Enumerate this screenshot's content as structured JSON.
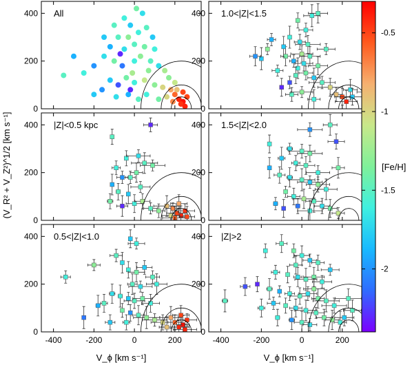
{
  "chart_data": {
    "type": "scatter",
    "shared_axes": {
      "xlabel": "V_ϕ [km s⁻¹]",
      "ylabel": "(V_R² + V_Z²)^1/2 [km s⁻¹]",
      "xlim": [
        -460,
        330
      ],
      "ylim": [
        0,
        450
      ],
      "x_ticks": [
        -400,
        -200,
        0,
        200
      ],
      "y_ticks": [
        0,
        200,
        400
      ],
      "x_tick_labels": [
        "-400",
        "-200",
        "0",
        "200"
      ],
      "y_tick_labels": [
        "0",
        "200",
        "400"
      ],
      "reference_circles": {
        "center_x": 232,
        "center_y": 0,
        "radii": [
          50,
          100,
          200
        ]
      }
    },
    "colorbar": {
      "label": "[Fe/H]",
      "range": [
        -2.4,
        -0.3
      ],
      "ticks": [
        -0.5,
        -1,
        -1.5,
        -2
      ],
      "tick_labels": [
        "-0.5",
        "-1",
        "-1.5",
        "-2"
      ],
      "colors": [
        "#7b00ff",
        "#2f6cff",
        "#19b9ff",
        "#3ff0e0",
        "#7ff09a",
        "#c8e88a",
        "#f5b070",
        "#ff5a1e",
        "#ff0000"
      ]
    },
    "panels": [
      {
        "label": "All",
        "has_error_bars": false,
        "ncolumn": 0,
        "nrow": 0,
        "points": [
          [
            -50,
            380,
            -1.6
          ],
          [
            -20,
            350,
            -1.8
          ],
          [
            10,
            420,
            -1.4
          ],
          [
            40,
            400,
            -1.7
          ],
          [
            -80,
            300,
            -1.5
          ],
          [
            -120,
            260,
            -1.9
          ],
          [
            -30,
            300,
            -1.3
          ],
          [
            20,
            320,
            -1.6
          ],
          [
            60,
            340,
            -1.5
          ],
          [
            90,
            300,
            -1.8
          ],
          [
            -150,
            220,
            -1.7
          ],
          [
            -200,
            180,
            -2.0
          ],
          [
            -250,
            150,
            -1.6
          ],
          [
            -300,
            220,
            -1.9
          ],
          [
            -350,
            140,
            -1.5
          ],
          [
            -100,
            200,
            -1.4
          ],
          [
            -60,
            180,
            -2.1
          ],
          [
            0,
            200,
            -1.6
          ],
          [
            30,
            220,
            -1.3
          ],
          [
            80,
            200,
            -1.5
          ],
          [
            120,
            180,
            -1.7
          ],
          [
            150,
            160,
            -1.2
          ],
          [
            -120,
            120,
            -1.8
          ],
          [
            -80,
            100,
            -2.2
          ],
          [
            -40,
            130,
            -1.4
          ],
          [
            0,
            110,
            -1.6
          ],
          [
            50,
            120,
            -1.1
          ],
          [
            100,
            100,
            -1.3
          ],
          [
            140,
            90,
            -1.0
          ],
          [
            180,
            80,
            -0.8
          ],
          [
            200,
            60,
            -0.6
          ],
          [
            220,
            40,
            -0.4
          ],
          [
            240,
            30,
            -0.35
          ],
          [
            260,
            50,
            -0.5
          ],
          [
            210,
            80,
            -0.9
          ],
          [
            230,
            20,
            -0.45
          ],
          [
            250,
            10,
            -0.4
          ],
          [
            190,
            30,
            -0.7
          ],
          [
            160,
            50,
            -1.0
          ],
          [
            120,
            40,
            -1.4
          ],
          [
            60,
            60,
            -1.6
          ],
          [
            20,
            40,
            -1.5
          ],
          [
            -30,
            60,
            -1.9
          ],
          [
            -90,
            50,
            -1.7
          ],
          [
            -160,
            80,
            -2.0
          ],
          [
            -200,
            60,
            -1.8
          ],
          [
            -50,
            250,
            -1.7
          ],
          [
            0,
            270,
            -1.5
          ],
          [
            50,
            260,
            -1.4
          ],
          [
            -10,
            150,
            -1.2
          ],
          [
            -70,
            230,
            -2.3
          ],
          [
            100,
            250,
            -1.6
          ],
          [
            -150,
            300,
            -1.8
          ],
          [
            -100,
            350,
            -1.5
          ],
          [
            70,
            160,
            -1.3
          ],
          [
            -20,
            80,
            -2.3
          ],
          [
            240,
            70,
            -0.5
          ],
          [
            200,
            110,
            -1.1
          ],
          [
            170,
            130,
            -1.3
          ]
        ]
      },
      {
        "label": "1.0<|Z|<1.5",
        "has_error_bars": true,
        "ncolumn": 1,
        "nrow": 0,
        "points": [
          [
            50,
            390,
            -1.6
          ],
          [
            80,
            400,
            -1.5
          ],
          [
            -20,
            370,
            -1.4
          ],
          [
            -150,
            290,
            -1.9
          ],
          [
            -200,
            210,
            -1.8
          ],
          [
            -230,
            220,
            -2.0
          ],
          [
            -170,
            250,
            -1.3
          ],
          [
            -60,
            300,
            -1.6
          ],
          [
            -10,
            280,
            -1.7
          ],
          [
            30,
            270,
            -1.5
          ],
          [
            -80,
            220,
            -1.4
          ],
          [
            -40,
            200,
            -1.9
          ],
          [
            0,
            230,
            -1.2
          ],
          [
            40,
            220,
            -1.5
          ],
          [
            -20,
            170,
            -1.6
          ],
          [
            20,
            150,
            -1.4
          ],
          [
            60,
            130,
            -1.8
          ],
          [
            -60,
            110,
            -2.2
          ],
          [
            -100,
            90,
            -2.3
          ],
          [
            100,
            110,
            -1.5
          ],
          [
            140,
            90,
            -1.0
          ],
          [
            170,
            60,
            -0.9
          ],
          [
            200,
            50,
            -0.5
          ],
          [
            220,
            30,
            -0.4
          ],
          [
            240,
            80,
            -1.7
          ],
          [
            250,
            50,
            -1.8
          ],
          [
            -50,
            60,
            -1.5
          ],
          [
            0,
            70,
            -1.3
          ],
          [
            60,
            40,
            -1.6
          ],
          [
            -30,
            140,
            -1.5
          ],
          [
            10,
            190,
            -1.7
          ],
          [
            -120,
            160,
            -1.6
          ],
          [
            80,
            180,
            -1.4
          ],
          [
            120,
            250,
            -1.5
          ],
          [
            -90,
            260,
            -1.8
          ],
          [
            20,
            330,
            -1.6
          ],
          [
            310,
            70,
            -2.0
          ]
        ]
      },
      {
        "label": "|Z|<0.5 kpc",
        "has_error_bars": true,
        "ncolumn": 0,
        "nrow": 1,
        "points": [
          [
            -110,
            350,
            -1.5
          ],
          [
            80,
            400,
            -2.3
          ],
          [
            -40,
            260,
            -1.6
          ],
          [
            20,
            270,
            -1.7
          ],
          [
            50,
            240,
            -1.5
          ],
          [
            90,
            230,
            -1.4
          ],
          [
            -90,
            220,
            -1.6
          ],
          [
            -60,
            180,
            -2.0
          ],
          [
            -20,
            180,
            -1.5
          ],
          [
            10,
            200,
            -1.4
          ],
          [
            -110,
            150,
            -1.9
          ],
          [
            -80,
            120,
            -1.5
          ],
          [
            -120,
            80,
            -1.4
          ],
          [
            -60,
            60,
            -2.3
          ],
          [
            0,
            70,
            -1.6
          ],
          [
            40,
            80,
            -1.2
          ],
          [
            80,
            50,
            -1.5
          ],
          [
            120,
            40,
            -1.3
          ],
          [
            160,
            60,
            -0.9
          ],
          [
            190,
            50,
            -0.7
          ],
          [
            210,
            30,
            -0.5
          ],
          [
            230,
            20,
            -0.4
          ],
          [
            250,
            40,
            -0.45
          ],
          [
            220,
            70,
            -0.8
          ],
          [
            200,
            10,
            -0.6
          ],
          [
            260,
            15,
            -0.5
          ],
          [
            180,
            20,
            -1.0
          ],
          [
            -30,
            110,
            -1.8
          ],
          [
            30,
            140,
            -1.5
          ]
        ]
      },
      {
        "label": "1.5<|Z|<2.0",
        "has_error_bars": true,
        "ncolumn": 1,
        "nrow": 1,
        "points": [
          [
            140,
            400,
            -1.5
          ],
          [
            40,
            380,
            -2.0
          ],
          [
            170,
            330,
            -2.2
          ],
          [
            -160,
            320,
            -1.6
          ],
          [
            -60,
            300,
            -1.7
          ],
          [
            0,
            290,
            -1.5
          ],
          [
            40,
            280,
            -1.4
          ],
          [
            -100,
            260,
            -1.8
          ],
          [
            -30,
            240,
            -1.6
          ],
          [
            20,
            230,
            -1.5
          ],
          [
            180,
            220,
            -1.4
          ],
          [
            -160,
            220,
            -1.9
          ],
          [
            -110,
            190,
            -1.5
          ],
          [
            -60,
            180,
            -1.7
          ],
          [
            0,
            170,
            -1.5
          ],
          [
            40,
            160,
            -1.8
          ],
          [
            80,
            150,
            -1.3
          ],
          [
            120,
            130,
            -1.6
          ],
          [
            -80,
            120,
            -1.4
          ],
          [
            -40,
            100,
            -1.6
          ],
          [
            10,
            90,
            -1.2
          ],
          [
            60,
            80,
            -1.5
          ],
          [
            100,
            60,
            -1.7
          ],
          [
            -20,
            60,
            -2.1
          ],
          [
            -90,
            50,
            -2.2
          ],
          [
            140,
            50,
            -1.4
          ],
          [
            180,
            30,
            -1.1
          ],
          [
            40,
            40,
            -1.6
          ],
          [
            -130,
            70,
            -1.9
          ],
          [
            80,
            200,
            -1.6
          ]
        ]
      },
      {
        "label": "0.5<|Z|<1.0",
        "has_error_bars": true,
        "ncolumn": 0,
        "nrow": 2,
        "points": [
          [
            -340,
            230,
            -1.6
          ],
          [
            -20,
            390,
            -1.8
          ],
          [
            10,
            370,
            -1.6
          ],
          [
            -200,
            280,
            -1.3
          ],
          [
            -90,
            320,
            -1.5
          ],
          [
            -60,
            290,
            -1.7
          ],
          [
            -30,
            260,
            -1.6
          ],
          [
            10,
            250,
            -1.4
          ],
          [
            50,
            270,
            -1.8
          ],
          [
            90,
            230,
            -1.5
          ],
          [
            -150,
            120,
            -1.5
          ],
          [
            -180,
            110,
            -1.9
          ],
          [
            -250,
            60,
            -2.1
          ],
          [
            -110,
            160,
            -1.7
          ],
          [
            -70,
            150,
            -1.6
          ],
          [
            -30,
            140,
            -1.8
          ],
          [
            0,
            130,
            -1.5
          ],
          [
            40,
            140,
            -1.4
          ],
          [
            80,
            120,
            -1.6
          ],
          [
            -60,
            90,
            -1.4
          ],
          [
            -20,
            80,
            -2.0
          ],
          [
            20,
            70,
            -1.5
          ],
          [
            60,
            60,
            -1.3
          ],
          [
            100,
            50,
            -1.2
          ],
          [
            140,
            40,
            -1.0
          ],
          [
            180,
            60,
            -0.8
          ],
          [
            200,
            40,
            -0.6
          ],
          [
            220,
            20,
            -0.4
          ],
          [
            240,
            30,
            -0.35
          ],
          [
            260,
            50,
            -0.45
          ],
          [
            230,
            70,
            -0.5
          ],
          [
            250,
            10,
            -0.4
          ],
          [
            160,
            20,
            -0.9
          ],
          [
            -10,
            200,
            -1.5
          ],
          [
            30,
            190,
            -1.7
          ],
          [
            110,
            200,
            -1.6
          ],
          [
            -120,
            40,
            -1.8
          ],
          [
            -40,
            40,
            -1.6
          ]
        ]
      },
      {
        "label": "|Z|>2",
        "has_error_bars": true,
        "ncolumn": 1,
        "nrow": 2,
        "points": [
          [
            -380,
            130,
            -1.5
          ],
          [
            -280,
            190,
            -2.2
          ],
          [
            -220,
            200,
            -2.3
          ],
          [
            -180,
            340,
            -1.6
          ],
          [
            -100,
            370,
            -1.5
          ],
          [
            -40,
            340,
            -1.4
          ],
          [
            0,
            320,
            -1.6
          ],
          [
            40,
            300,
            -1.8
          ],
          [
            80,
            290,
            -1.5
          ],
          [
            -130,
            250,
            -1.6
          ],
          [
            -70,
            240,
            -1.5
          ],
          [
            -20,
            230,
            -1.7
          ],
          [
            20,
            220,
            -1.5
          ],
          [
            60,
            230,
            -1.4
          ],
          [
            100,
            210,
            -1.6
          ],
          [
            140,
            260,
            -1.8
          ],
          [
            -160,
            180,
            -1.5
          ],
          [
            -110,
            170,
            -1.9
          ],
          [
            -60,
            160,
            -1.6
          ],
          [
            -10,
            150,
            -1.5
          ],
          [
            30,
            160,
            -1.7
          ],
          [
            80,
            140,
            -1.4
          ],
          [
            120,
            130,
            -1.5
          ],
          [
            160,
            110,
            -1.6
          ],
          [
            -140,
            120,
            -1.8
          ],
          [
            -80,
            110,
            -1.5
          ],
          [
            -30,
            100,
            -1.7
          ],
          [
            20,
            90,
            -1.6
          ],
          [
            70,
            80,
            -1.5
          ],
          [
            110,
            60,
            -1.4
          ],
          [
            150,
            50,
            -1.3
          ],
          [
            190,
            40,
            -1.6
          ],
          [
            230,
            140,
            -1.5
          ],
          [
            -120,
            60,
            -1.6
          ],
          [
            -50,
            50,
            -2.0
          ],
          [
            0,
            40,
            -1.5
          ],
          [
            40,
            30,
            -1.7
          ],
          [
            210,
            60,
            -1.8
          ],
          [
            250,
            90,
            -1.5
          ],
          [
            -200,
            100,
            -1.6
          ],
          [
            60,
            180,
            -1.3
          ],
          [
            -30,
            280,
            -1.5
          ]
        ]
      }
    ]
  }
}
